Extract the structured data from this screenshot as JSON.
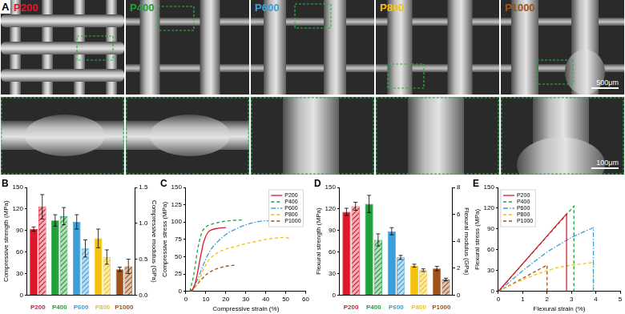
{
  "image_panel": {
    "panel": "A",
    "tiles": [
      {
        "label": "P200",
        "color": "#e0162b"
      },
      {
        "label": "P400",
        "color": "#1fa03a"
      },
      {
        "label": "P600",
        "color": "#3d9fd8"
      },
      {
        "label": "P800",
        "color": "#f4c20d"
      },
      {
        "label": "P1000",
        "color": "#a0521b"
      }
    ],
    "scale_bars": [
      "500μm",
      "100μm"
    ]
  },
  "chart_data": [
    {
      "panel": "B",
      "type": "bar",
      "categories": [
        "P200",
        "P400",
        "P600",
        "P800",
        "P1000"
      ],
      "colors": [
        "#e0162b",
        "#1fa03a",
        "#3d9fd8",
        "#f4c20d",
        "#a0521b"
      ],
      "y_label": "Compressive strength (MPa)",
      "y2_label": "Compressive modulus (GPa)",
      "ylim": [
        0,
        150
      ],
      "yticks": [
        0,
        30,
        60,
        90,
        120,
        150
      ],
      "y2lim": [
        0,
        1.5
      ],
      "y2ticks": [
        {
          "value": 0,
          "label": "0.0"
        },
        0.5,
        {
          "value": 1,
          "label": "1.0"
        },
        1.5
      ],
      "grid": false,
      "series": [
        {
          "values": [
            92,
            104,
            102,
            79,
            36
          ],
          "errors": [
            3,
            8,
            10,
            13,
            3
          ]
        },
        {
          "axis": "y2",
          "values": [
            1.23,
            1.1,
            0.65,
            0.53,
            0.4
          ],
          "errors": [
            0.17,
            0.12,
            0.12,
            0.1,
            0.1
          ]
        }
      ]
    },
    {
      "panel": "C",
      "type": "line",
      "x_label": "Compressive strain (%)",
      "y_label": "Compressive stress (MPa)",
      "xlim": [
        0,
        60
      ],
      "xticks": [
        0,
        10,
        20,
        30,
        40,
        50,
        60
      ],
      "ylim": [
        0,
        150
      ],
      "yticks": [
        0,
        25,
        50,
        75,
        100,
        125,
        150
      ],
      "grid": false,
      "legend": "upper right",
      "series": [
        {
          "name": "P200",
          "color": "#e0162b",
          "line_style": "solid",
          "x": [
            3,
            5,
            7,
            9,
            11,
            13,
            16,
            20
          ],
          "values": [
            0,
            15,
            45,
            72,
            85,
            89,
            91,
            92
          ]
        },
        {
          "name": "P400",
          "color": "#1fa03a",
          "line_style": "dashed",
          "x": [
            2,
            4,
            6,
            8,
            10,
            13,
            17,
            22,
            28
          ],
          "values": [
            0,
            25,
            62,
            85,
            93,
            97,
            100,
            102,
            103
          ]
        },
        {
          "name": "P600",
          "color": "#3d9fd8",
          "line_style": "dashdot",
          "x": [
            3,
            6,
            9,
            12,
            16,
            20,
            25,
            30,
            35,
            40,
            44
          ],
          "values": [
            0,
            18,
            40,
            58,
            72,
            82,
            90,
            96,
            100,
            102,
            101
          ]
        },
        {
          "name": "P800",
          "color": "#f4c20d",
          "line_style": "dashed",
          "x": [
            3,
            6,
            9,
            12,
            16,
            20,
            25,
            30,
            35,
            40,
            45,
            50,
            52
          ],
          "values": [
            0,
            12,
            33,
            47,
            56,
            61,
            65,
            69,
            72,
            75,
            77,
            78,
            76
          ]
        },
        {
          "name": "P1000",
          "color": "#a0521b",
          "line_style": "dashed",
          "x": [
            2,
            5,
            8,
            11,
            14,
            18,
            22,
            25
          ],
          "values": [
            0,
            8,
            18,
            26,
            31,
            35,
            37,
            38
          ]
        }
      ]
    },
    {
      "panel": "D",
      "type": "bar",
      "categories": [
        "P200",
        "P400",
        "P600",
        "P800",
        "P1000"
      ],
      "colors": [
        "#e0162b",
        "#1fa03a",
        "#3d9fd8",
        "#f4c20d",
        "#a0521b"
      ],
      "y_label": "Flexural strength (MPa)",
      "y2_label": "Flexural modulus (GPa)",
      "ylim": [
        0,
        150
      ],
      "yticks": [
        0,
        30,
        60,
        90,
        120,
        150
      ],
      "y2lim": [
        0,
        8
      ],
      "y2ticks": [
        0,
        2,
        4,
        6,
        8
      ],
      "grid": false,
      "series": [
        {
          "values": [
            116,
            127,
            89,
            41,
            37
          ],
          "errors": [
            5,
            12,
            5,
            2,
            3
          ]
        },
        {
          "axis": "y2",
          "values": [
            6.6,
            4.1,
            2.8,
            1.85,
            1.15
          ],
          "errors": [
            0.3,
            0.45,
            0.15,
            0.1,
            0.1
          ]
        }
      ]
    },
    {
      "panel": "E",
      "type": "line",
      "x_label": "Flexural strain (%)",
      "y_label": "Flexural stress (MPa)",
      "xlim": [
        0,
        5
      ],
      "xticks": [
        0,
        1,
        2,
        3,
        4,
        5
      ],
      "ylim": [
        0,
        150
      ],
      "yticks": [
        0,
        30,
        60,
        90,
        120,
        150
      ],
      "grid": false,
      "legend": "upper left",
      "series": [
        {
          "name": "P200",
          "color": "#e0162b",
          "line_style": "solid",
          "x": [
            0,
            2.8,
            2.8
          ],
          "values": [
            0,
            112,
            0
          ]
        },
        {
          "name": "P400",
          "color": "#1fa03a",
          "line_style": "dashed",
          "x": [
            0,
            3.1,
            3.1
          ],
          "values": [
            0,
            123,
            0
          ]
        },
        {
          "name": "P600",
          "color": "#3d9fd8",
          "line_style": "dashdot",
          "x": [
            0,
            1,
            2,
            3,
            3.9,
            3.9
          ],
          "values": [
            0,
            30,
            57,
            78,
            92,
            0
          ]
        },
        {
          "name": "P800",
          "color": "#f4c20d",
          "line_style": "dashed",
          "x": [
            0,
            0.5,
            1,
            1.5,
            2,
            2.5,
            3,
            3.5,
            3.9,
            3.9
          ],
          "values": [
            0,
            9,
            17,
            24,
            30,
            35,
            38,
            40,
            42,
            0
          ]
        },
        {
          "name": "P1000",
          "color": "#a0521b",
          "line_style": "dashed",
          "x": [
            0,
            2,
            2
          ],
          "values": [
            0,
            38,
            0
          ]
        }
      ]
    }
  ]
}
